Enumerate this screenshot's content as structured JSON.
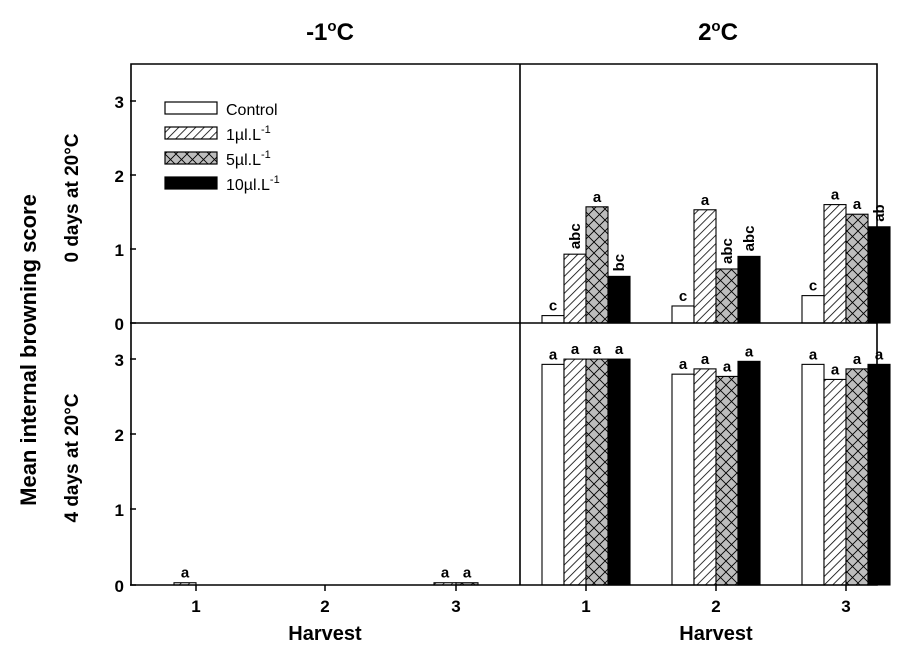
{
  "figure": {
    "y_axis_label": "Mean internal browning score",
    "x_axis_label": "Harvest"
  },
  "chart_data": {
    "type": "bar",
    "column_titles": [
      {
        "main": "-1",
        "sup": "o",
        "unit": "C"
      },
      {
        "main": "2",
        "sup": "o",
        "unit": "C"
      }
    ],
    "row_titles": [
      "0 days at 20°C",
      "4 days at 20°C"
    ],
    "categories": [
      "1",
      "2",
      "3"
    ],
    "xlabel": "Harvest",
    "ylabel": "Mean internal browning score",
    "ylim": [
      0,
      3.5
    ],
    "yticks": [
      "0",
      "1",
      "2",
      "3"
    ],
    "legend": {
      "placement": "top-left of upper-left panel",
      "entries": [
        {
          "label": "Control",
          "sup": "",
          "pattern": "empty"
        },
        {
          "label": "1µl.L",
          "sup": "-1",
          "pattern": "diagonal"
        },
        {
          "label": "5µl.L",
          "sup": "-1",
          "pattern": "crosshatch-grey"
        },
        {
          "label": "10µl.L",
          "sup": "-1",
          "pattern": "solid-black"
        }
      ]
    },
    "panels": [
      {
        "temperature": "-1°C",
        "storage": "0 days at 20°C",
        "series": [
          {
            "name": "Control",
            "values": [
              0,
              0,
              0
            ],
            "labels": [
              "",
              "",
              ""
            ]
          },
          {
            "name": "1µl.L-1",
            "values": [
              0,
              0,
              0
            ],
            "labels": [
              "",
              "",
              ""
            ]
          },
          {
            "name": "5µl.L-1",
            "values": [
              0,
              0,
              0
            ],
            "labels": [
              "",
              "",
              ""
            ]
          },
          {
            "name": "10µl.L-1",
            "values": [
              0,
              0,
              0
            ],
            "labels": [
              "",
              "",
              ""
            ]
          }
        ]
      },
      {
        "temperature": "2°C",
        "storage": "0 days at 20°C",
        "series": [
          {
            "name": "Control",
            "values": [
              0.1,
              0.23,
              0.37
            ],
            "labels": [
              "c",
              "c",
              "c"
            ]
          },
          {
            "name": "1µl.L-1",
            "values": [
              0.93,
              1.53,
              1.6
            ],
            "labels": [
              "abc",
              "a",
              "a"
            ]
          },
          {
            "name": "5µl.L-1",
            "values": [
              1.57,
              0.73,
              1.47
            ],
            "labels": [
              "a",
              "abc",
              "a"
            ]
          },
          {
            "name": "10µl.L-1",
            "values": [
              0.63,
              0.9,
              1.3
            ],
            "labels": [
              "bc",
              "abc",
              "ab"
            ]
          }
        ]
      },
      {
        "temperature": "-1°C",
        "storage": "4 days at 20°C",
        "series": [
          {
            "name": "Control",
            "values": [
              0,
              0,
              0
            ],
            "labels": [
              "",
              "",
              ""
            ]
          },
          {
            "name": "1µl.L-1",
            "values": [
              0.03,
              0,
              0.03
            ],
            "labels": [
              "a",
              "",
              "a"
            ]
          },
          {
            "name": "5µl.L-1",
            "values": [
              0,
              0,
              0.03
            ],
            "labels": [
              "",
              "",
              "a"
            ]
          },
          {
            "name": "10µl.L-1",
            "values": [
              0,
              0,
              0
            ],
            "labels": [
              "",
              "",
              ""
            ]
          }
        ]
      },
      {
        "temperature": "2°C",
        "storage": "4 days at 20°C",
        "series": [
          {
            "name": "Control",
            "values": [
              2.93,
              2.8,
              2.93
            ],
            "labels": [
              "a",
              "a",
              "a"
            ]
          },
          {
            "name": "1µl.L-1",
            "values": [
              3.0,
              2.87,
              2.73
            ],
            "labels": [
              "a",
              "a",
              "a"
            ]
          },
          {
            "name": "5µl.L-1",
            "values": [
              3.0,
              2.77,
              2.87
            ],
            "labels": [
              "a",
              "a",
              "a"
            ]
          },
          {
            "name": "10µl.L-1",
            "values": [
              3.0,
              2.97,
              2.93
            ],
            "labels": [
              "a",
              "a",
              "a"
            ]
          }
        ]
      }
    ]
  }
}
